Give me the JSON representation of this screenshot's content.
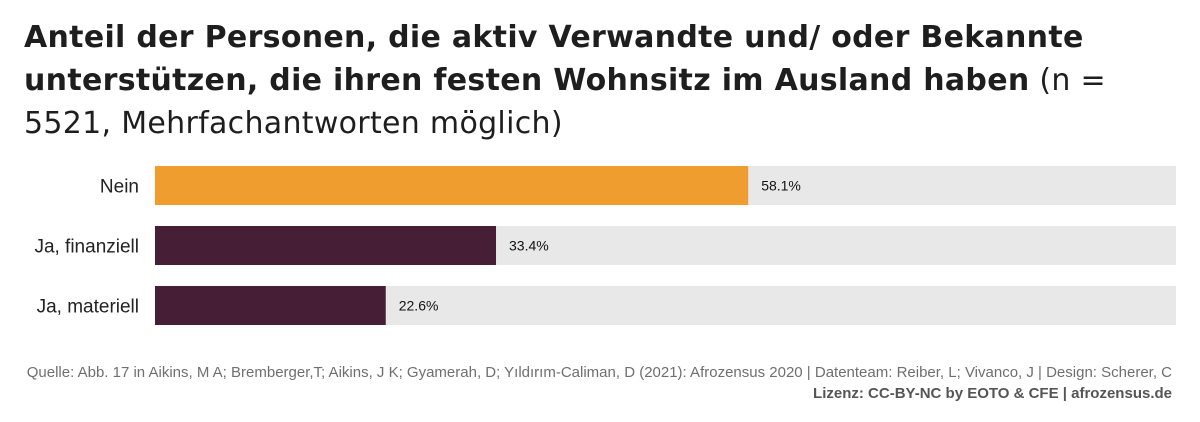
{
  "title": {
    "bold": "Anteil der Personen, die aktiv Verwandte und/ oder Bekannte unterstützen, die ihren festen Wohnsitz im Ausland haben",
    "normal": " (n = 5521, Mehrfachantworten möglich)"
  },
  "chart_data": {
    "type": "bar",
    "orientation": "horizontal",
    "categories": [
      "Nein",
      "Ja, finanziell",
      "Ja, materiell"
    ],
    "values": [
      58.1,
      33.4,
      22.6
    ],
    "value_labels": [
      "58.1%",
      "33.4%",
      "22.6%"
    ],
    "xlim": [
      0,
      100
    ],
    "grid": false,
    "bar_colors": [
      "#ef9d2f",
      "#461e35",
      "#461e35"
    ],
    "track_color": "#e8e8e8"
  },
  "footer": {
    "source": "Quelle: Abb. 17 in Aikins, M A; Bremberger,T; Aikins, J K; Gyamerah, D; Yıldırım-Caliman, D (2021): Afrozensus 2020 | Datenteam: Reiber, L; Vivanco, J | Design: Scherer, C",
    "license": "Lizenz: CC-BY-NC by EOTO & CFE | afrozensus.de"
  }
}
